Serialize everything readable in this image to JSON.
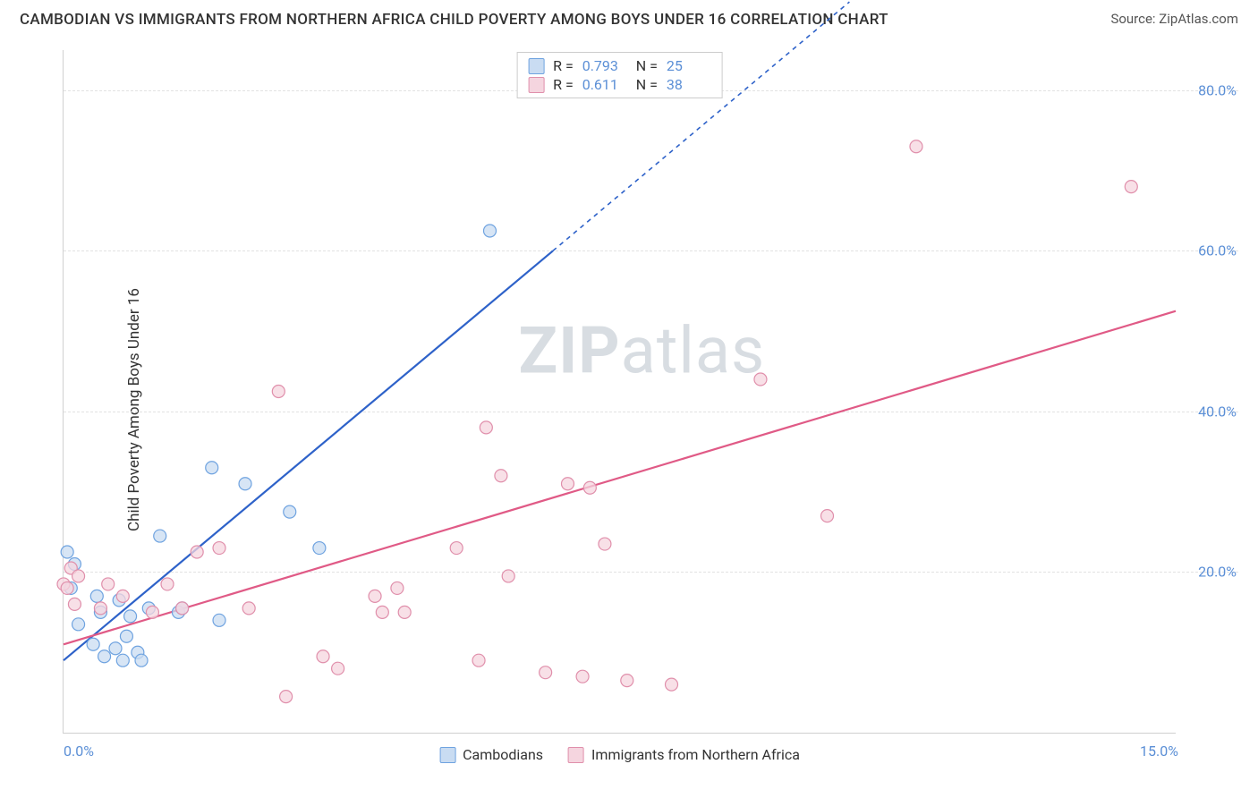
{
  "header": {
    "title": "CAMBODIAN VS IMMIGRANTS FROM NORTHERN AFRICA CHILD POVERTY AMONG BOYS UNDER 16 CORRELATION CHART",
    "source_prefix": "Source: ",
    "source_name": "ZipAtlas.com"
  },
  "chart": {
    "type": "scatter",
    "y_axis_label": "Child Poverty Among Boys Under 16",
    "xlim": [
      0,
      15
    ],
    "ylim": [
      0,
      85
    ],
    "x_ticks": [
      {
        "value": 0,
        "label": "0.0%"
      },
      {
        "value": 15,
        "label": "15.0%"
      }
    ],
    "y_ticks": [
      {
        "value": 20,
        "label": "20.0%"
      },
      {
        "value": 40,
        "label": "40.0%"
      },
      {
        "value": 60,
        "label": "60.0%"
      },
      {
        "value": 80,
        "label": "80.0%"
      }
    ],
    "background_color": "#ffffff",
    "grid_color": "#e2e2e2",
    "axis_color": "#d0d0d0",
    "tick_label_color": "#5b8fd6",
    "watermark_text": "ZIPatlas",
    "series": [
      {
        "name": "Cambodians",
        "color_fill": "#c9dcf2",
        "color_stroke": "#6fa3e0",
        "line_color": "#2e62c9",
        "r_value": "0.793",
        "n_value": "25",
        "marker_radius": 7,
        "points": [
          [
            0.05,
            22.5
          ],
          [
            0.1,
            18.0
          ],
          [
            0.15,
            21.0
          ],
          [
            0.2,
            13.5
          ],
          [
            0.4,
            11.0
          ],
          [
            0.45,
            17.0
          ],
          [
            0.5,
            15.0
          ],
          [
            0.55,
            9.5
          ],
          [
            0.7,
            10.5
          ],
          [
            0.75,
            16.5
          ],
          [
            0.8,
            9.0
          ],
          [
            0.85,
            12.0
          ],
          [
            0.9,
            14.5
          ],
          [
            1.0,
            10.0
          ],
          [
            1.05,
            9.0
          ],
          [
            1.15,
            15.5
          ],
          [
            1.3,
            24.5
          ],
          [
            1.55,
            15.0
          ],
          [
            1.6,
            15.5
          ],
          [
            2.0,
            33.0
          ],
          [
            2.1,
            14.0
          ],
          [
            2.45,
            31.0
          ],
          [
            3.05,
            27.5
          ],
          [
            3.45,
            23.0
          ],
          [
            5.75,
            62.5
          ]
        ],
        "regression": {
          "x1": 0,
          "y1": 9.0,
          "x2": 6.6,
          "y2": 60.0,
          "extend_to_x": 10.6,
          "extend_to_y": 91.0
        }
      },
      {
        "name": "Immigrants from Northern Africa",
        "color_fill": "#f5d5df",
        "color_stroke": "#e08fab",
        "line_color": "#e05a86",
        "r_value": "0.611",
        "n_value": "38",
        "marker_radius": 7,
        "points": [
          [
            0.0,
            18.5
          ],
          [
            0.05,
            18.0
          ],
          [
            0.1,
            20.5
          ],
          [
            0.15,
            16.0
          ],
          [
            0.2,
            19.5
          ],
          [
            0.5,
            15.5
          ],
          [
            0.6,
            18.5
          ],
          [
            0.8,
            17.0
          ],
          [
            1.2,
            15.0
          ],
          [
            1.4,
            18.5
          ],
          [
            1.6,
            15.5
          ],
          [
            1.8,
            22.5
          ],
          [
            2.1,
            23.0
          ],
          [
            2.5,
            15.5
          ],
          [
            2.9,
            42.5
          ],
          [
            3.0,
            4.5
          ],
          [
            3.5,
            9.5
          ],
          [
            3.7,
            8.0
          ],
          [
            4.2,
            17.0
          ],
          [
            4.3,
            15.0
          ],
          [
            4.5,
            18.0
          ],
          [
            4.6,
            15.0
          ],
          [
            5.3,
            23.0
          ],
          [
            5.6,
            9.0
          ],
          [
            5.7,
            38.0
          ],
          [
            5.9,
            32.0
          ],
          [
            6.0,
            19.5
          ],
          [
            6.5,
            7.5
          ],
          [
            6.8,
            31.0
          ],
          [
            7.0,
            7.0
          ],
          [
            7.1,
            30.5
          ],
          [
            7.3,
            23.5
          ],
          [
            7.6,
            6.5
          ],
          [
            8.2,
            6.0
          ],
          [
            9.4,
            44.0
          ],
          [
            10.3,
            27.0
          ],
          [
            11.5,
            73.0
          ],
          [
            14.4,
            68.0
          ]
        ],
        "regression": {
          "x1": 0,
          "y1": 11.0,
          "x2": 15,
          "y2": 52.5
        }
      }
    ]
  },
  "legend_top": {
    "r_label": "R =",
    "n_label": "N ="
  }
}
